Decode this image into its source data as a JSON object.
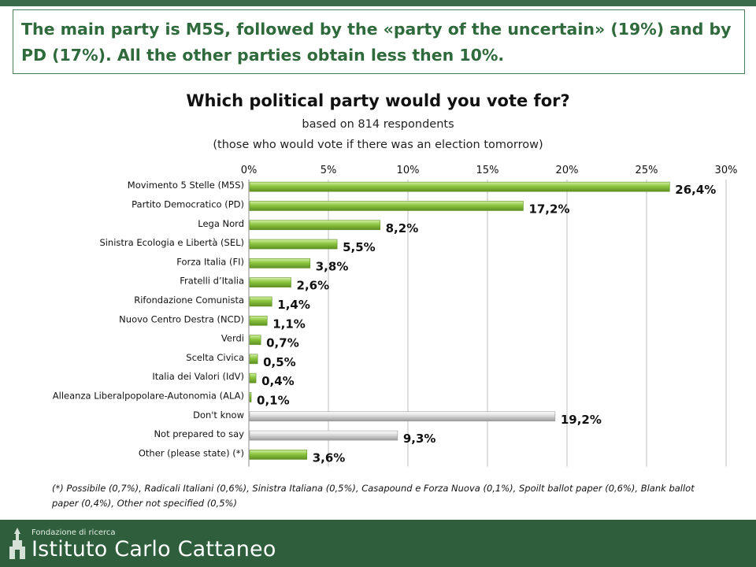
{
  "headline": "The main party is M5S, followed by the «party of the uncertain» (19%) and by PD (17%). All the other parties obtain less then 10%.",
  "chart_data": {
    "type": "bar",
    "orientation": "horizontal",
    "title": "Which political party would you vote for?",
    "subtitle_line1": "based on 814 respondents",
    "subtitle_line2": "(those who would vote if there was an election tomorrow)",
    "categories": [
      "Movimento 5 Stelle (M5S)",
      "Partito Democratico (PD)",
      "Lega Nord",
      "Sinistra Ecologia e Libertà (SEL)",
      "Forza Italia (FI)",
      "Fratelli d’Italia",
      "Rifondazione Comunista",
      "Nuovo Centro Destra (NCD)",
      "Verdi",
      "Scelta Civica",
      "Italia dei Valori (IdV)",
      "Alleanza Liberalpopolare-Autonomia (ALA)",
      "Don't know",
      "Not prepared to say",
      "Other (please state) (*)"
    ],
    "values": [
      26.4,
      17.2,
      8.2,
      5.5,
      3.8,
      2.6,
      1.4,
      1.1,
      0.7,
      0.5,
      0.4,
      0.1,
      19.2,
      9.3,
      3.6
    ],
    "value_labels": [
      "26,4%",
      "17,2%",
      "8,2%",
      "5,5%",
      "3,8%",
      "2,6%",
      "1,4%",
      "1,1%",
      "0,7%",
      "0,5%",
      "0,4%",
      "0,1%",
      "19,2%",
      "9,3%",
      "3,6%"
    ],
    "bar_groups": [
      "party",
      "party",
      "party",
      "party",
      "party",
      "party",
      "party",
      "party",
      "party",
      "party",
      "party",
      "party",
      "non-vote",
      "non-vote",
      "party"
    ],
    "xlim": [
      0,
      30
    ],
    "x_ticks": [
      "0%",
      "5%",
      "10%",
      "15%",
      "20%",
      "25%",
      "30%"
    ],
    "x_axis_position": "top",
    "grid": true,
    "colors": {
      "party": "#8cc63f",
      "party_dark": "#5e8f22",
      "non-vote": "#d9d9d9",
      "non-vote_dark": "#9a9a9a",
      "grid": "#bfbfbf"
    }
  },
  "footnote": "(*) Possibile (0,7%), Radicali Italiani (0,6%), Sinistra Italiana (0,5%), Casapound e Forza Nuova (0,1%), Spoilt ballot paper (0,6%), Blank ballot paper (0,4%), Other not specified (0,5%)",
  "footer": {
    "small_text": "Fondazione di ricerca",
    "big_text": "Istituto Carlo Cattaneo",
    "colors": {
      "background": "#2e5e3b",
      "top_strip": "#3a6b4a"
    }
  }
}
